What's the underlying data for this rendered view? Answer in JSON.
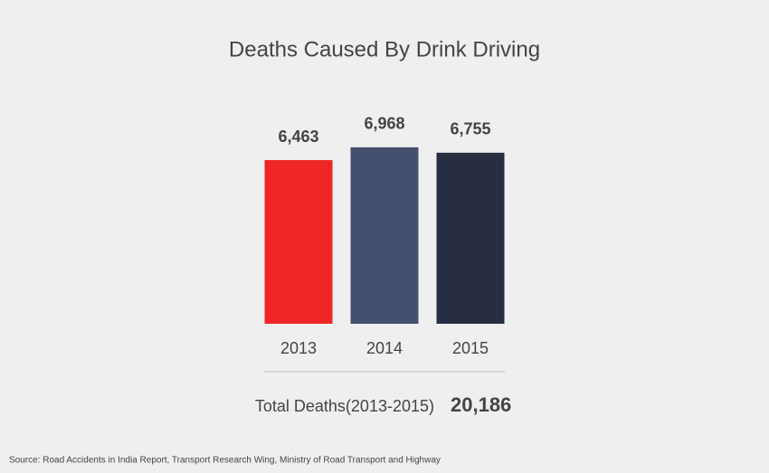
{
  "chart_data": {
    "type": "bar",
    "title": "Deaths Caused By Drink Driving",
    "categories": [
      "2013",
      "2014",
      "2015"
    ],
    "values": [
      6463,
      6968,
      6755
    ],
    "value_labels": [
      "6,463",
      "6,968",
      "6,755"
    ],
    "colors": [
      "#ee2625",
      "#44506e",
      "#272e42"
    ],
    "total_text": "Total Deaths(2013-2015)",
    "total": {
      "value": 20186,
      "label": "20,186"
    },
    "source": "Source: Road Accidents in India Report, Transport Research Wing, Ministry of Road Transport and Highway"
  }
}
